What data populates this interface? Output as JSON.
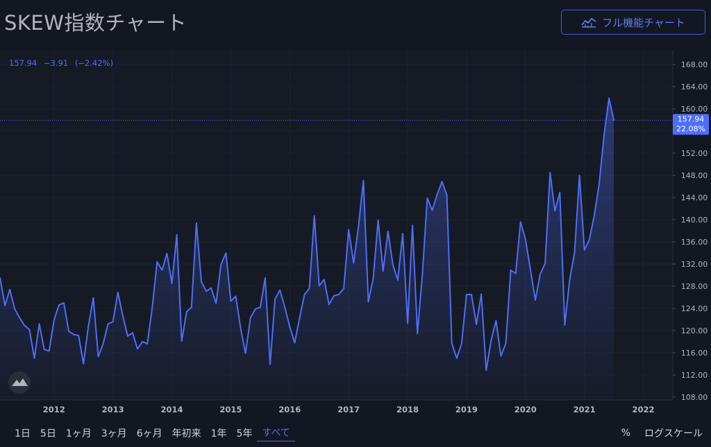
{
  "page": {
    "title": "SKEW指数チャート",
    "full_chart_button": "フル機能チャート",
    "icon": "chart-line-icon"
  },
  "legend": {
    "price": "157.94",
    "change": "−3.91",
    "change_pct": "(−2.42%)"
  },
  "price_tag": {
    "value": "157.94",
    "pct": "22.08%"
  },
  "logo_icon": "tradingview-logo-icon",
  "toolbar": {
    "ranges": [
      "1日",
      "5日",
      "1ヶ月",
      "3ヶ月",
      "6ヶ月",
      "年初来",
      "1年",
      "5年",
      "すべて"
    ],
    "active_range": "すべて",
    "percent": "%",
    "log_scale": "ログスケール"
  },
  "colors": {
    "line": "#4f6ef7",
    "background": "#131722",
    "accent": "#3d5fe0"
  },
  "chart_data": {
    "type": "area",
    "title": "",
    "xlabel": "",
    "ylabel": "",
    "ylim": [
      107.5,
      170.5
    ],
    "x_ticks": [
      "2012",
      "2013",
      "2014",
      "2015",
      "2016",
      "2017",
      "2018",
      "2019",
      "2020",
      "2021",
      "2022"
    ],
    "y_ticks": [
      "168.00",
      "164.00",
      "160.00",
      "156.00",
      "152.00",
      "148.00",
      "144.00",
      "140.00",
      "136.00",
      "132.00",
      "128.00",
      "124.00",
      "120.00",
      "116.00",
      "112.00",
      "108.00"
    ],
    "grid": true,
    "series": [
      {
        "points": [
          [
            "2011-02",
            129.6
          ],
          [
            "2011-03",
            124.5
          ],
          [
            "2011-04",
            127.4
          ],
          [
            "2011-05",
            123.9
          ],
          [
            "2011-06",
            122.3
          ],
          [
            "2011-07",
            120.9
          ],
          [
            "2011-08",
            120.2
          ],
          [
            "2011-09",
            115.0
          ],
          [
            "2011-10",
            121.2
          ],
          [
            "2011-11",
            116.6
          ],
          [
            "2011-12",
            116.3
          ],
          [
            "2012-01",
            121.9
          ],
          [
            "2012-02",
            124.6
          ],
          [
            "2012-03",
            125.0
          ],
          [
            "2012-04",
            119.9
          ],
          [
            "2012-05",
            119.3
          ],
          [
            "2012-06",
            119.1
          ],
          [
            "2012-07",
            114.0
          ],
          [
            "2012-08",
            120.8
          ],
          [
            "2012-09",
            125.9
          ],
          [
            "2012-10",
            115.3
          ],
          [
            "2012-11",
            117.6
          ],
          [
            "2012-12",
            121.2
          ],
          [
            "2013-01",
            121.6
          ],
          [
            "2013-02",
            126.9
          ],
          [
            "2013-03",
            122.7
          ],
          [
            "2013-04",
            119.0
          ],
          [
            "2013-05",
            119.6
          ],
          [
            "2013-06",
            116.7
          ],
          [
            "2013-07",
            118.0
          ],
          [
            "2013-08",
            117.6
          ],
          [
            "2013-09",
            124.2
          ],
          [
            "2013-10",
            132.4
          ],
          [
            "2013-11",
            130.9
          ],
          [
            "2013-12",
            133.9
          ],
          [
            "2014-01",
            128.5
          ],
          [
            "2014-02",
            137.3
          ],
          [
            "2014-03",
            118.1
          ],
          [
            "2014-04",
            123.4
          ],
          [
            "2014-05",
            124.2
          ],
          [
            "2014-06",
            139.4
          ],
          [
            "2014-07",
            128.8
          ],
          [
            "2014-08",
            127.1
          ],
          [
            "2014-09",
            127.7
          ],
          [
            "2014-10",
            124.9
          ],
          [
            "2014-11",
            131.9
          ],
          [
            "2014-12",
            134.0
          ],
          [
            "2015-01",
            125.3
          ],
          [
            "2015-02",
            126.2
          ],
          [
            "2015-03",
            120.4
          ],
          [
            "2015-04",
            115.9
          ],
          [
            "2015-05",
            122.3
          ],
          [
            "2015-06",
            123.9
          ],
          [
            "2015-07",
            124.2
          ],
          [
            "2015-08",
            129.5
          ],
          [
            "2015-09",
            113.9
          ],
          [
            "2015-10",
            125.7
          ],
          [
            "2015-11",
            127.3
          ],
          [
            "2015-12",
            124.2
          ],
          [
            "2016-01",
            120.7
          ],
          [
            "2016-02",
            117.8
          ],
          [
            "2016-03",
            122.3
          ],
          [
            "2016-04",
            126.5
          ],
          [
            "2016-05",
            127.6
          ],
          [
            "2016-06",
            140.7
          ],
          [
            "2016-07",
            128.1
          ],
          [
            "2016-08",
            129.2
          ],
          [
            "2016-09",
            124.7
          ],
          [
            "2016-10",
            126.3
          ],
          [
            "2016-11",
            126.5
          ],
          [
            "2016-12",
            127.6
          ],
          [
            "2017-01",
            138.2
          ],
          [
            "2017-02",
            132.2
          ],
          [
            "2017-03",
            138.8
          ],
          [
            "2017-04",
            147.1
          ],
          [
            "2017-05",
            125.2
          ],
          [
            "2017-06",
            129.4
          ],
          [
            "2017-07",
            139.9
          ],
          [
            "2017-08",
            130.7
          ],
          [
            "2017-09",
            137.9
          ],
          [
            "2017-10",
            131.9
          ],
          [
            "2017-11",
            129.1
          ],
          [
            "2017-12",
            137.5
          ],
          [
            "2018-01",
            121.3
          ],
          [
            "2018-02",
            139.0
          ],
          [
            "2018-03",
            119.5
          ],
          [
            "2018-04",
            130.1
          ],
          [
            "2018-05",
            143.9
          ],
          [
            "2018-06",
            141.7
          ],
          [
            "2018-07",
            144.5
          ],
          [
            "2018-08",
            146.9
          ],
          [
            "2018-09",
            144.4
          ],
          [
            "2018-10",
            117.7
          ],
          [
            "2018-11",
            115.0
          ],
          [
            "2018-12",
            117.7
          ],
          [
            "2019-01",
            126.5
          ],
          [
            "2019-02",
            126.5
          ],
          [
            "2019-03",
            121.1
          ],
          [
            "2019-04",
            126.6
          ],
          [
            "2019-05",
            112.8
          ],
          [
            "2019-06",
            118.2
          ],
          [
            "2019-07",
            121.8
          ],
          [
            "2019-08",
            115.4
          ],
          [
            "2019-09",
            117.7
          ],
          [
            "2019-10",
            130.9
          ],
          [
            "2019-11",
            130.3
          ],
          [
            "2019-12",
            139.6
          ],
          [
            "2020-01",
            136.5
          ],
          [
            "2020-02",
            131.0
          ],
          [
            "2020-03",
            125.5
          ],
          [
            "2020-04",
            130.2
          ],
          [
            "2020-05",
            132.1
          ],
          [
            "2020-06",
            148.5
          ],
          [
            "2020-07",
            141.6
          ],
          [
            "2020-08",
            144.9
          ],
          [
            "2020-09",
            121.0
          ],
          [
            "2020-10",
            129.2
          ],
          [
            "2020-11",
            134.1
          ],
          [
            "2020-12",
            148.0
          ],
          [
            "2021-01",
            134.5
          ],
          [
            "2021-02",
            136.4
          ],
          [
            "2021-03",
            140.7
          ],
          [
            "2021-04",
            146.4
          ],
          [
            "2021-05",
            155.3
          ],
          [
            "2021-06",
            161.9
          ],
          [
            "2021-07",
            157.9
          ]
        ]
      }
    ]
  }
}
